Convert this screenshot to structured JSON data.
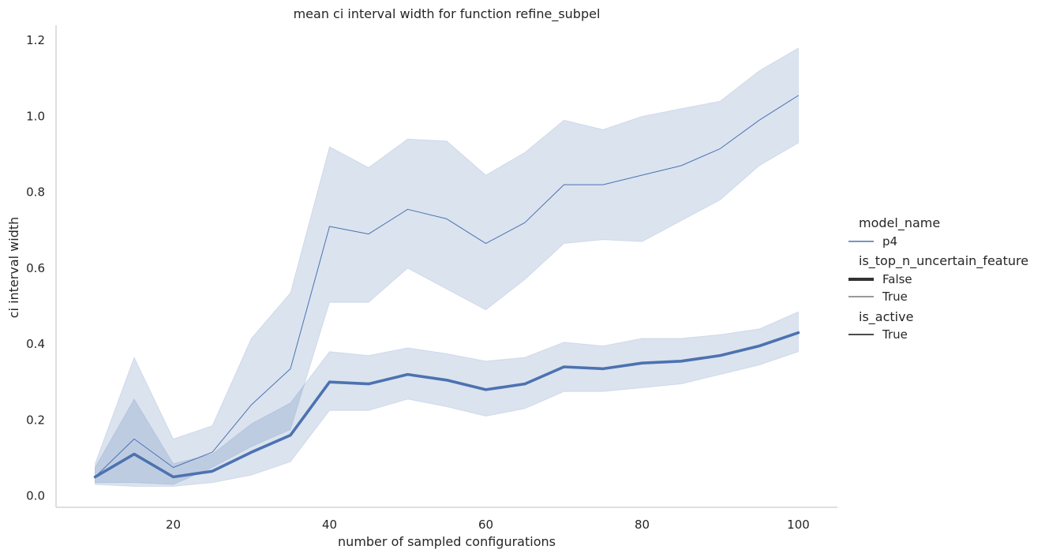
{
  "chart_data": {
    "type": "line",
    "title": "mean ci interval width for function refine_subpel",
    "xlabel": "number of sampled configurations",
    "ylabel": "ci interval width",
    "xlim": [
      5,
      105
    ],
    "ylim": [
      -0.03,
      1.24
    ],
    "xticks": [
      20,
      40,
      60,
      80,
      100
    ],
    "xtick_labels": [
      "20",
      "40",
      "60",
      "80",
      "100"
    ],
    "yticks": [
      0.0,
      0.2,
      0.4,
      0.6,
      0.8,
      1.0,
      1.2
    ],
    "ytick_labels": [
      "0.0",
      "0.2",
      "0.4",
      "0.6",
      "0.8",
      "1.0",
      "1.2"
    ],
    "grid": false,
    "color": "#4c72b0",
    "series": [
      {
        "name": "True",
        "is_top_n_uncertain_feature": "True",
        "line_weight": "thin",
        "x": [
          10,
          15,
          20,
          25,
          30,
          35,
          40,
          45,
          50,
          55,
          60,
          65,
          70,
          75,
          80,
          85,
          90,
          95,
          100
        ],
        "y": [
          0.05,
          0.15,
          0.075,
          0.115,
          0.24,
          0.335,
          0.71,
          0.69,
          0.755,
          0.73,
          0.665,
          0.72,
          0.82,
          0.82,
          0.845,
          0.87,
          0.915,
          0.99,
          1.055
        ],
        "ci_lower": [
          0.035,
          0.035,
          0.03,
          0.075,
          0.13,
          0.175,
          0.51,
          0.51,
          0.6,
          0.545,
          0.49,
          0.57,
          0.665,
          0.675,
          0.67,
          0.725,
          0.78,
          0.87,
          0.93
        ],
        "ci_upper": [
          0.085,
          0.365,
          0.15,
          0.185,
          0.415,
          0.535,
          0.92,
          0.865,
          0.94,
          0.935,
          0.845,
          0.905,
          0.99,
          0.965,
          1.0,
          1.02,
          1.04,
          1.12,
          1.18
        ]
      },
      {
        "name": "False",
        "is_top_n_uncertain_feature": "False",
        "line_weight": "thick",
        "x": [
          10,
          15,
          20,
          25,
          30,
          35,
          40,
          45,
          50,
          55,
          60,
          65,
          70,
          75,
          80,
          85,
          90,
          95,
          100
        ],
        "y": [
          0.05,
          0.11,
          0.05,
          0.065,
          0.115,
          0.16,
          0.3,
          0.295,
          0.32,
          0.305,
          0.28,
          0.295,
          0.34,
          0.335,
          0.35,
          0.355,
          0.37,
          0.395,
          0.43
        ],
        "ci_lower": [
          0.03,
          0.025,
          0.025,
          0.035,
          0.055,
          0.09,
          0.225,
          0.225,
          0.255,
          0.235,
          0.21,
          0.23,
          0.275,
          0.275,
          0.285,
          0.295,
          0.32,
          0.345,
          0.38
        ],
        "ci_upper": [
          0.075,
          0.255,
          0.085,
          0.11,
          0.19,
          0.245,
          0.38,
          0.37,
          0.39,
          0.375,
          0.355,
          0.365,
          0.405,
          0.395,
          0.415,
          0.415,
          0.425,
          0.44,
          0.485
        ]
      }
    ],
    "legend": {
      "placement": "right",
      "groups": [
        {
          "title": "model_name",
          "entries": [
            {
              "label": "p4",
              "style": "color"
            }
          ]
        },
        {
          "title": "is_top_n_uncertain_feature",
          "entries": [
            {
              "label": "False",
              "style": "thick"
            },
            {
              "label": "True",
              "style": "thin"
            }
          ]
        },
        {
          "title": "is_active",
          "entries": [
            {
              "label": "True",
              "style": "plain"
            }
          ]
        }
      ]
    }
  }
}
